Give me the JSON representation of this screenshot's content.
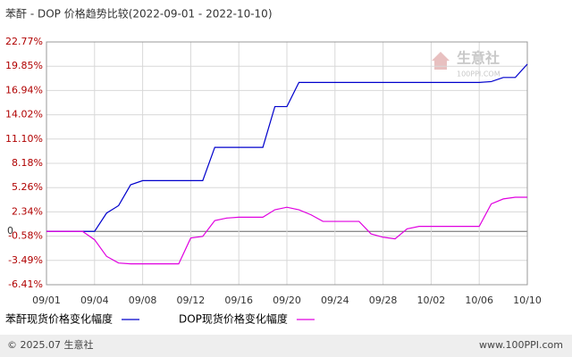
{
  "chart_data": {
    "type": "line",
    "title": "苯酐 - DOP 价格趋势比较(2022-09-01 - 2022-10-10)",
    "categories": [
      "09/01",
      null,
      null,
      null,
      "09/04",
      null,
      null,
      null,
      "09/08",
      null,
      null,
      null,
      "09/12",
      null,
      null,
      null,
      "09/16",
      null,
      null,
      null,
      "09/20",
      null,
      null,
      null,
      "09/24",
      null,
      null,
      null,
      "09/28",
      null,
      null,
      null,
      "10/02",
      null,
      null,
      null,
      "10/06",
      null,
      null,
      null,
      "10/10"
    ],
    "series": [
      {
        "name": "苯酐现货价格变化幅度",
        "color": "#0000cc",
        "values": [
          0,
          0,
          0,
          0,
          0,
          2.2,
          3.1,
          5.6,
          6.1,
          6.1,
          6.1,
          6.1,
          6.1,
          6.1,
          10.1,
          10.1,
          10.1,
          10.1,
          10.1,
          15.0,
          15.0,
          17.9,
          17.9,
          17.9,
          17.9,
          17.9,
          17.9,
          17.9,
          17.9,
          17.9,
          17.9,
          17.9,
          17.9,
          17.9,
          17.9,
          17.9,
          17.9,
          18.0,
          18.5,
          18.5,
          20.1
        ]
      },
      {
        "name": "DOP现货价格变化幅度",
        "color": "#e000e0",
        "values": [
          0,
          0,
          0,
          0,
          -1.0,
          -3.0,
          -3.8,
          -3.9,
          -3.9,
          -3.9,
          -3.9,
          -3.9,
          -0.8,
          -0.6,
          1.3,
          1.6,
          1.7,
          1.7,
          1.7,
          2.6,
          2.9,
          2.6,
          2.0,
          1.2,
          1.2,
          1.2,
          1.2,
          -0.3,
          -0.7,
          -0.9,
          0.3,
          0.6,
          0.6,
          0.6,
          0.6,
          0.6,
          0.6,
          3.3,
          3.9,
          4.1,
          4.1
        ]
      }
    ],
    "ylim": [
      -6.41,
      22.77
    ],
    "yticks": [
      {
        "value": 22.77,
        "label": "22.77%"
      },
      {
        "value": 19.85,
        "label": "19.85%"
      },
      {
        "value": 16.94,
        "label": "16.94%"
      },
      {
        "value": 14.02,
        "label": "14.02%"
      },
      {
        "value": 11.1,
        "label": "11.10%"
      },
      {
        "value": 8.18,
        "label": "8.18%"
      },
      {
        "value": 5.26,
        "label": "5.26%"
      },
      {
        "value": 2.34,
        "label": "2.34%"
      },
      0,
      {
        "value": -0.58,
        "label": "-0.58%"
      },
      {
        "value": -3.49,
        "label": "-3.49%"
      },
      {
        "value": -6.41,
        "label": "-6.41%"
      }
    ],
    "grid": true,
    "watermark": [
      "生意社",
      "100PPI.COM"
    ],
    "footer_left": "© 2025.07 生意社",
    "footer_right": "www.100PPI.com"
  }
}
